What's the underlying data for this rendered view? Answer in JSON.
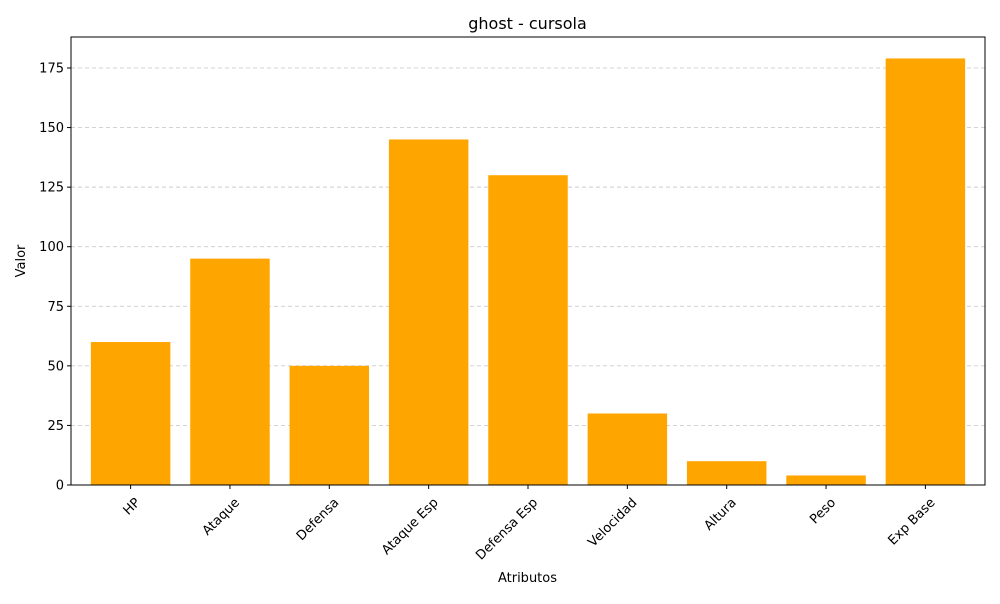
{
  "chart_data": {
    "type": "bar",
    "title": "ghost - cursola",
    "xlabel": "Atributos",
    "ylabel": "Valor",
    "categories": [
      "HP",
      "Ataque",
      "Defensa",
      "Ataque Esp",
      "Defensa Esp",
      "Velocidad",
      "Altura",
      "Peso",
      "Exp Base"
    ],
    "values": [
      60,
      95,
      50,
      145,
      130,
      30,
      10,
      4,
      179
    ],
    "ylim": [
      0,
      188
    ],
    "yticks": [
      0,
      25,
      50,
      75,
      100,
      125,
      150,
      175
    ],
    "grid": {
      "y": true,
      "style": "dashed"
    },
    "bar_color": "#FFA500",
    "xtick_rotation": 45
  }
}
